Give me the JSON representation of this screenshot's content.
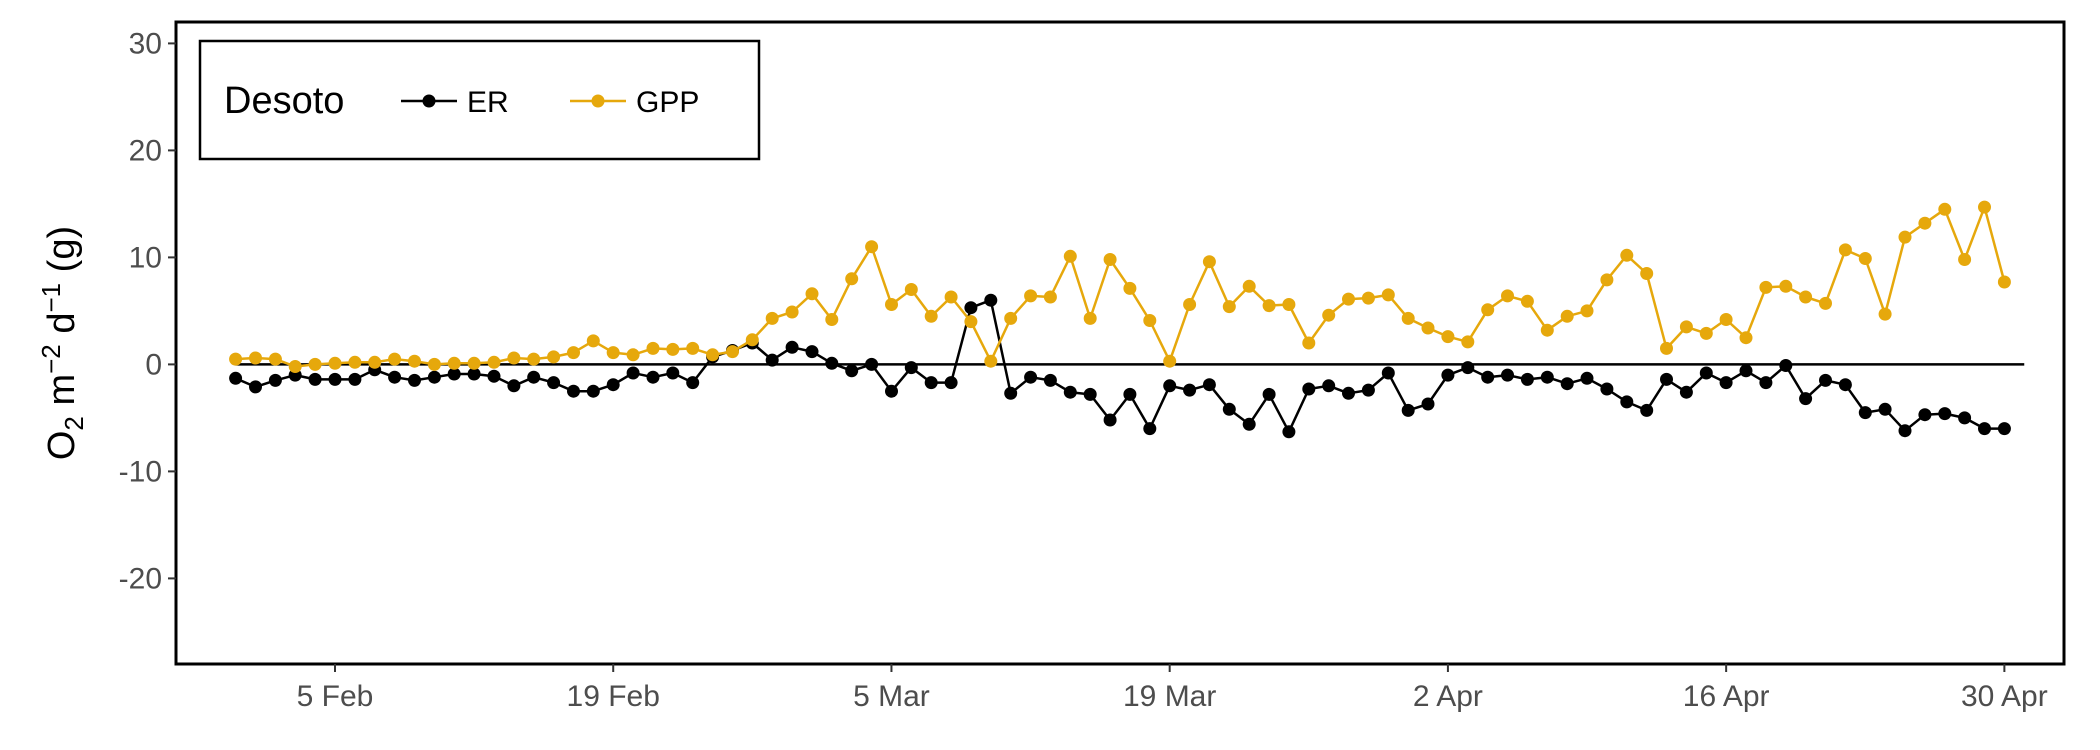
{
  "chart_data": {
    "type": "line",
    "title": "",
    "xlabel": "",
    "ylabel": {
      "base": "O",
      "base_sub": "2",
      "unit1": " m",
      "unit1_sup": "−2",
      "unit2": " d",
      "unit2_sup": "−1",
      "suffix": " (g)"
    },
    "ylim": [
      -28,
      32
    ],
    "y_ticks": [
      30,
      20,
      10,
      0,
      -10,
      -20
    ],
    "y_tick_labels": [
      "30",
      "20",
      "10",
      "0",
      "-10",
      "-20"
    ],
    "x_range": [
      "2023-01-28",
      "2023-05-03"
    ],
    "x_ticks": [
      "2023-02-05",
      "2023-02-19",
      "2023-03-05",
      "2023-03-19",
      "2023-04-02",
      "2023-04-16",
      "2023-04-30"
    ],
    "x_tick_labels": [
      "5 Feb",
      "19 Feb",
      "5 Mar",
      "19 Mar",
      "2 Apr",
      "16 Apr",
      "30 Apr"
    ],
    "reference_line": {
      "y": 0,
      "from": "2023-01-31",
      "to": "2023-05-01"
    },
    "grid": false,
    "legend": {
      "title": "Desoto",
      "position": "top-left"
    },
    "x_start": "2023-01-31",
    "series": [
      {
        "name": "ER",
        "color": "#000000",
        "values": [
          -1.3,
          -2.1,
          -1.5,
          -1.0,
          -1.4,
          -1.4,
          -1.4,
          -0.5,
          -1.2,
          -1.5,
          -1.2,
          -0.9,
          -0.9,
          -1.1,
          -2.0,
          -1.2,
          -1.7,
          -2.5,
          -2.5,
          -1.9,
          -0.8,
          -1.2,
          -0.8,
          -1.7,
          0.7,
          1.3,
          2.0,
          0.4,
          1.6,
          1.2,
          0.1,
          -0.6,
          0.0,
          -2.5,
          -0.3,
          -1.7,
          -1.7,
          5.3,
          6.0,
          -2.7,
          -1.2,
          -1.5,
          -2.6,
          -2.8,
          -5.2,
          -2.8,
          -6.0,
          -2.0,
          -2.4,
          -1.9,
          -4.2,
          -5.6,
          -2.8,
          -6.3,
          -2.3,
          -2.0,
          -2.7,
          -2.4,
          -0.8,
          -4.3,
          -3.7,
          -1.0,
          -0.3,
          -1.2,
          -1.0,
          -1.4,
          -1.2,
          -1.8,
          -1.3,
          -2.3,
          -3.5,
          -4.3,
          -1.4,
          -2.6,
          -0.8,
          -1.7,
          -0.6,
          -1.7,
          -0.1,
          -3.2,
          -1.5,
          -1.9,
          -4.5,
          -4.2,
          -6.2,
          -4.7,
          -4.6,
          -5.0,
          -6.0,
          -6.0
        ]
      },
      {
        "name": "GPP",
        "color": "#E6A80C",
        "values": [
          0.5,
          0.6,
          0.5,
          -0.2,
          0.0,
          0.1,
          0.2,
          0.2,
          0.5,
          0.3,
          0.0,
          0.1,
          0.1,
          0.2,
          0.6,
          0.5,
          0.7,
          1.1,
          2.2,
          1.1,
          0.9,
          1.5,
          1.4,
          1.5,
          0.9,
          1.2,
          2.3,
          4.3,
          4.9,
          6.6,
          4.2,
          8.0,
          11.0,
          5.6,
          7.0,
          4.5,
          6.3,
          4.0,
          0.3,
          4.3,
          6.4,
          6.3,
          10.1,
          4.3,
          9.8,
          7.1,
          4.1,
          0.3,
          5.6,
          9.6,
          5.4,
          7.3,
          5.5,
          5.6,
          2.0,
          4.6,
          6.1,
          6.2,
          6.5,
          4.3,
          3.4,
          2.6,
          2.1,
          5.1,
          6.4,
          5.9,
          3.2,
          4.5,
          5.0,
          7.9,
          10.2,
          8.5,
          1.5,
          3.5,
          2.9,
          4.2,
          2.5,
          7.2,
          7.3,
          6.3,
          5.7,
          10.7,
          9.9,
          4.7,
          11.9,
          13.2,
          14.5,
          9.8,
          14.7,
          7.7
        ]
      }
    ]
  }
}
